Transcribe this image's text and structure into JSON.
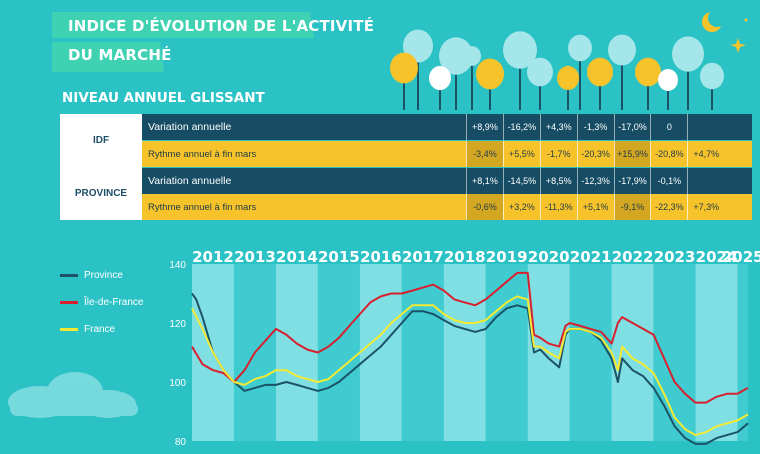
{
  "header": {
    "title_line1": "INDICE D'ÉVOLUTION DE L'ACTIVITÉ",
    "title_line2": "DU MARCHÉ",
    "subtitle": "NIVEAU ANNUEL GLISSANT"
  },
  "table": {
    "regions": [
      {
        "name": "IDF",
        "rows": [
          {
            "label": "Variation annuelle",
            "values": [
              "+8,9%",
              "-16,2%",
              "+4,3%",
              "-1,3%",
              "-17,0%",
              "0",
              ""
            ]
          },
          {
            "label": "Rythme annuel à fin mars",
            "values": [
              "-3,4%",
              "+5,5%",
              "-1,7%",
              "-20,3%",
              "+15,9%",
              "-20,8%",
              "+4,7%"
            ]
          }
        ]
      },
      {
        "name": "PROVINCE",
        "rows": [
          {
            "label": "Variation annuelle",
            "values": [
              "+8,1%",
              "-14,5%",
              "+8,5%",
              "-12,3%",
              "-17,9%",
              "-0,1%",
              ""
            ]
          },
          {
            "label": "Rythme annuel à fin mars",
            "values": [
              "-0,6%",
              "+3,2%",
              "-11,3%",
              "+5,1%",
              "-9,1%",
              "-22,3%",
              "+7,3%"
            ]
          }
        ]
      }
    ]
  },
  "colors": {
    "background": "#2bc2c6",
    "dark_row": "#164c64",
    "yellow_row": "#f7c32b",
    "province": "#1c5366",
    "idf": "#d8202f",
    "france": "#f4ea34"
  },
  "chart_data": {
    "type": "line",
    "year_labels": [
      "2012",
      "2013",
      "2014",
      "2015",
      "2016",
      "2017",
      "2018",
      "2019",
      "2020",
      "2021",
      "2022",
      "2023",
      "2024",
      "2025"
    ],
    "yticks": [
      "80",
      "100",
      "120",
      "140"
    ],
    "ylim": [
      80,
      140
    ],
    "xlim": [
      2012.0,
      2025.25
    ],
    "legend": [
      "Province",
      "Île-de-France",
      "France"
    ],
    "series": [
      {
        "name": "Province",
        "color": "#1c5366",
        "points": [
          [
            2012.0,
            130
          ],
          [
            2012.1,
            128
          ],
          [
            2012.25,
            122
          ],
          [
            2012.5,
            110
          ],
          [
            2012.75,
            104
          ],
          [
            2013.0,
            100
          ],
          [
            2013.25,
            97
          ],
          [
            2013.5,
            98
          ],
          [
            2013.75,
            99
          ],
          [
            2014.0,
            99
          ],
          [
            2014.25,
            100
          ],
          [
            2014.5,
            99
          ],
          [
            2014.75,
            98
          ],
          [
            2015.0,
            97
          ],
          [
            2015.25,
            98
          ],
          [
            2015.5,
            100
          ],
          [
            2015.75,
            103
          ],
          [
            2016.0,
            106
          ],
          [
            2016.25,
            109
          ],
          [
            2016.5,
            112
          ],
          [
            2016.75,
            116
          ],
          [
            2017.0,
            120
          ],
          [
            2017.25,
            124
          ],
          [
            2017.5,
            124
          ],
          [
            2017.75,
            123
          ],
          [
            2018.0,
            121
          ],
          [
            2018.25,
            119
          ],
          [
            2018.5,
            118
          ],
          [
            2018.75,
            117
          ],
          [
            2019.0,
            118
          ],
          [
            2019.25,
            122
          ],
          [
            2019.5,
            125
          ],
          [
            2019.75,
            126
          ],
          [
            2020.0,
            125
          ],
          [
            2020.15,
            110
          ],
          [
            2020.3,
            111
          ],
          [
            2020.5,
            108
          ],
          [
            2020.75,
            105
          ],
          [
            2020.9,
            116
          ],
          [
            2021.0,
            118
          ],
          [
            2021.25,
            118
          ],
          [
            2021.5,
            117
          ],
          [
            2021.75,
            114
          ],
          [
            2022.0,
            108
          ],
          [
            2022.15,
            100
          ],
          [
            2022.25,
            108
          ],
          [
            2022.5,
            104
          ],
          [
            2022.75,
            102
          ],
          [
            2023.0,
            98
          ],
          [
            2023.25,
            92
          ],
          [
            2023.5,
            85
          ],
          [
            2023.75,
            81
          ],
          [
            2024.0,
            79
          ],
          [
            2024.25,
            79
          ],
          [
            2024.5,
            81
          ],
          [
            2024.75,
            82
          ],
          [
            2025.0,
            83
          ],
          [
            2025.25,
            86
          ]
        ]
      },
      {
        "name": "Île-de-France",
        "color": "#d8202f",
        "points": [
          [
            2012.0,
            112
          ],
          [
            2012.25,
            106
          ],
          [
            2012.5,
            104
          ],
          [
            2012.75,
            103
          ],
          [
            2013.0,
            100
          ],
          [
            2013.25,
            104
          ],
          [
            2013.5,
            110
          ],
          [
            2013.75,
            114
          ],
          [
            2014.0,
            118
          ],
          [
            2014.25,
            116
          ],
          [
            2014.5,
            113
          ],
          [
            2014.75,
            111
          ],
          [
            2015.0,
            110
          ],
          [
            2015.25,
            112
          ],
          [
            2015.5,
            115
          ],
          [
            2015.75,
            119
          ],
          [
            2016.0,
            123
          ],
          [
            2016.25,
            127
          ],
          [
            2016.5,
            129
          ],
          [
            2016.75,
            130
          ],
          [
            2017.0,
            130
          ],
          [
            2017.25,
            131
          ],
          [
            2017.5,
            132
          ],
          [
            2017.75,
            133
          ],
          [
            2018.0,
            131
          ],
          [
            2018.25,
            128
          ],
          [
            2018.5,
            127
          ],
          [
            2018.75,
            126
          ],
          [
            2019.0,
            128
          ],
          [
            2019.25,
            131
          ],
          [
            2019.5,
            134
          ],
          [
            2019.75,
            137
          ],
          [
            2020.0,
            137
          ],
          [
            2020.15,
            116
          ],
          [
            2020.3,
            115
          ],
          [
            2020.5,
            113
          ],
          [
            2020.75,
            112
          ],
          [
            2020.9,
            119
          ],
          [
            2021.0,
            120
          ],
          [
            2021.25,
            119
          ],
          [
            2021.5,
            118
          ],
          [
            2021.75,
            117
          ],
          [
            2022.0,
            113
          ],
          [
            2022.15,
            120
          ],
          [
            2022.25,
            122
          ],
          [
            2022.5,
            120
          ],
          [
            2022.75,
            118
          ],
          [
            2023.0,
            116
          ],
          [
            2023.25,
            108
          ],
          [
            2023.5,
            100
          ],
          [
            2023.75,
            96
          ],
          [
            2024.0,
            93
          ],
          [
            2024.25,
            93
          ],
          [
            2024.5,
            95
          ],
          [
            2024.75,
            96
          ],
          [
            2025.0,
            96
          ],
          [
            2025.25,
            98
          ]
        ]
      },
      {
        "name": "France",
        "color": "#f4ea34",
        "points": [
          [
            2012.0,
            125
          ],
          [
            2012.25,
            118
          ],
          [
            2012.5,
            110
          ],
          [
            2012.75,
            104
          ],
          [
            2013.0,
            100
          ],
          [
            2013.25,
            99
          ],
          [
            2013.5,
            101
          ],
          [
            2013.75,
            102
          ],
          [
            2014.0,
            104
          ],
          [
            2014.25,
            104
          ],
          [
            2014.5,
            102
          ],
          [
            2014.75,
            101
          ],
          [
            2015.0,
            100
          ],
          [
            2015.25,
            101
          ],
          [
            2015.5,
            104
          ],
          [
            2015.75,
            107
          ],
          [
            2016.0,
            110
          ],
          [
            2016.25,
            113
          ],
          [
            2016.5,
            116
          ],
          [
            2016.75,
            120
          ],
          [
            2017.0,
            123
          ],
          [
            2017.25,
            126
          ],
          [
            2017.5,
            126
          ],
          [
            2017.75,
            126
          ],
          [
            2018.0,
            123
          ],
          [
            2018.25,
            121
          ],
          [
            2018.5,
            120
          ],
          [
            2018.75,
            120
          ],
          [
            2019.0,
            121
          ],
          [
            2019.25,
            124
          ],
          [
            2019.5,
            127
          ],
          [
            2019.75,
            129
          ],
          [
            2020.0,
            128
          ],
          [
            2020.15,
            112
          ],
          [
            2020.3,
            112
          ],
          [
            2020.5,
            110
          ],
          [
            2020.75,
            108
          ],
          [
            2020.9,
            117
          ],
          [
            2021.0,
            118
          ],
          [
            2021.25,
            118
          ],
          [
            2021.5,
            117
          ],
          [
            2021.75,
            115
          ],
          [
            2022.0,
            110
          ],
          [
            2022.15,
            104
          ],
          [
            2022.25,
            112
          ],
          [
            2022.5,
            108
          ],
          [
            2022.75,
            106
          ],
          [
            2023.0,
            103
          ],
          [
            2023.25,
            96
          ],
          [
            2023.5,
            88
          ],
          [
            2023.75,
            84
          ],
          [
            2024.0,
            82
          ],
          [
            2024.25,
            83
          ],
          [
            2024.5,
            85
          ],
          [
            2024.75,
            86
          ],
          [
            2025.0,
            87
          ],
          [
            2025.25,
            89
          ]
        ]
      }
    ]
  }
}
